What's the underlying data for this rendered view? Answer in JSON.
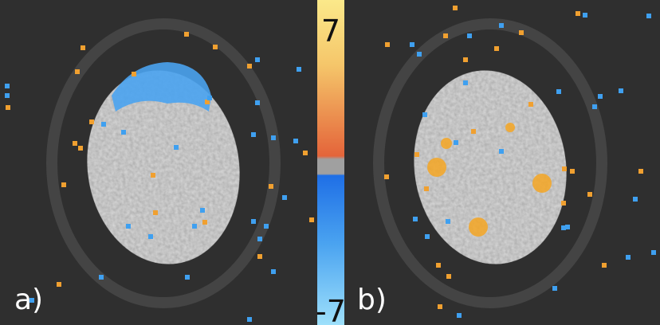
{
  "panels": [
    {
      "label": "a)"
    },
    {
      "label": "b)"
    }
  ],
  "colorbar": {
    "top_label": "7",
    "bottom_label": "-7"
  }
}
